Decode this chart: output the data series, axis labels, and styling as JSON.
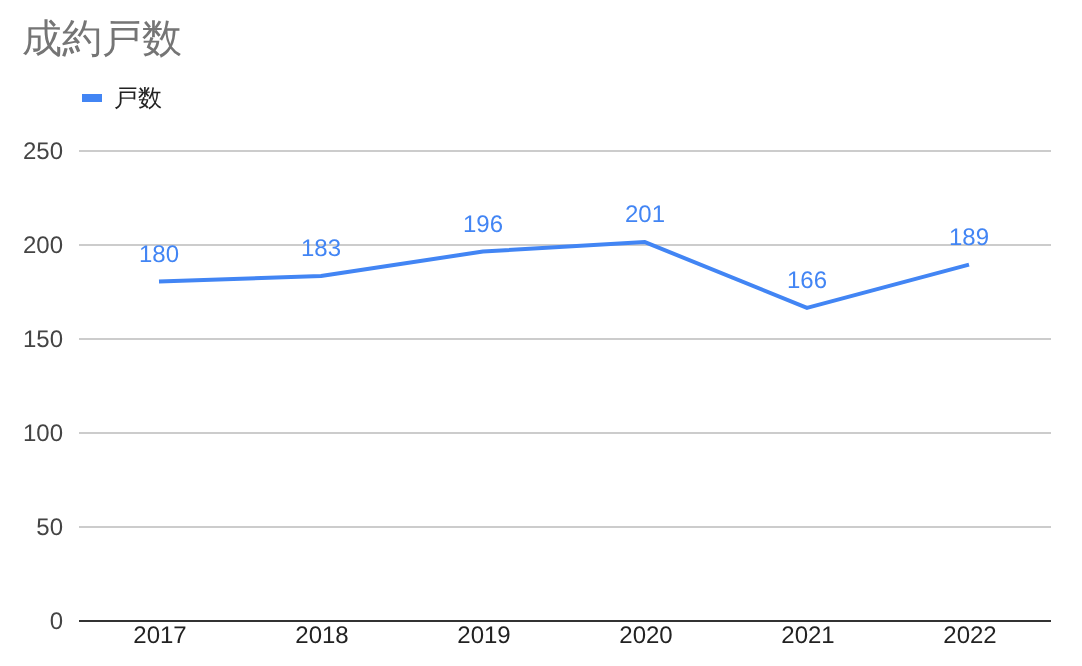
{
  "chart_data": {
    "type": "line",
    "title": "成約戸数",
    "categories": [
      "2017",
      "2018",
      "2019",
      "2020",
      "2021",
      "2022"
    ],
    "series": [
      {
        "name": "戸数",
        "color": "#4285f4",
        "values": [
          180,
          183,
          196,
          201,
          166,
          189
        ]
      }
    ],
    "ylim": [
      0,
      250
    ],
    "yticks": [
      0,
      50,
      100,
      150,
      200,
      250
    ],
    "grid": "y",
    "legend": "top",
    "data_labels": true,
    "marker": "none",
    "line_style": "solid"
  }
}
